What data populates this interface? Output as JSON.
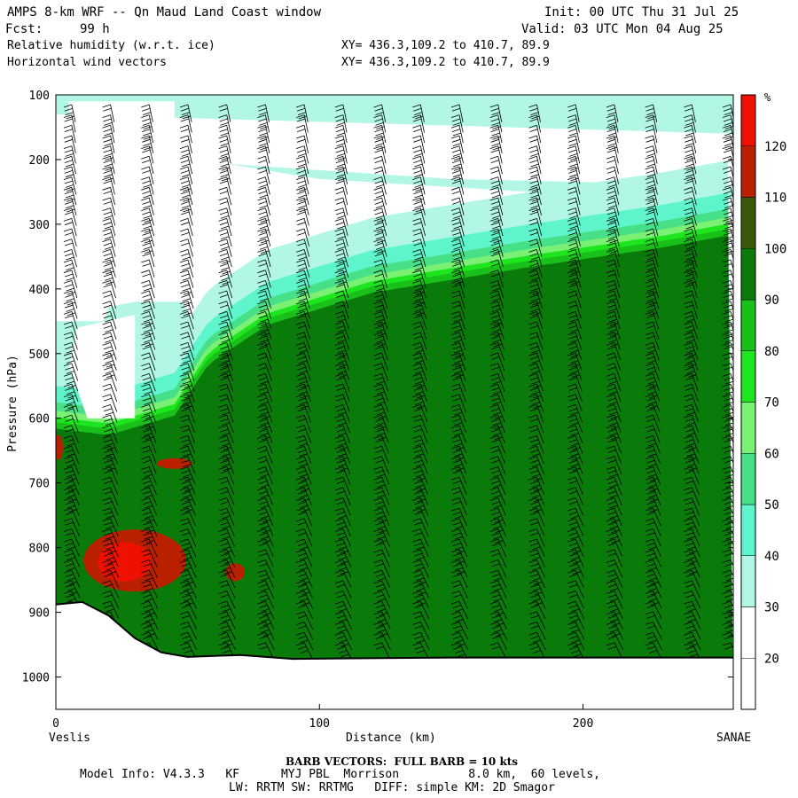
{
  "header": {
    "title": "AMPS 8-km WRF -- Qn Maud Land Coast window",
    "fcst_label": "Fcst:",
    "fcst_value": "99 h",
    "init": "Init: 00 UTC Thu 31 Jul 25",
    "valid": "Valid: 03 UTC Mon 04 Aug 25",
    "field1": "Relative humidity (w.r.t. ice)",
    "field2": "Horizontal wind vectors",
    "xy1": "XY= 436.3,109.2 to 410.7, 89.9",
    "xy2": "XY= 436.3,109.2 to 410.7, 89.9"
  },
  "footer": {
    "left_station": "Veslis",
    "right_station": "SANAE",
    "barb_note": "BARB VECTORS:  FULL BARB = 10 kts",
    "model_info_1": "Model Info: V4.3.3   KF      MYJ PBL  Morrison          8.0 km,  60 levels,",
    "model_info_2": "LW: RRTM SW: RRTMG   DIFF: simple KM: 2D Smagor"
  },
  "chart_data": {
    "type": "heatmap",
    "title": "Relative humidity (w.r.t. ice)",
    "xlabel": "Distance (km)",
    "ylabel": "Pressure (hPa)",
    "x_ticks": [
      0,
      100,
      200
    ],
    "y_ticks": [
      100,
      200,
      300,
      400,
      500,
      600,
      700,
      800,
      900,
      1000
    ],
    "xlim": [
      0,
      257
    ],
    "ylim": [
      1050,
      100
    ],
    "colorbar": {
      "unit": "%",
      "levels": [
        20,
        30,
        40,
        50,
        60,
        70,
        80,
        90,
        100,
        110,
        120
      ],
      "colors": [
        "#ffffff",
        "#ffffff",
        "#b2f7e6",
        "#5ef5cc",
        "#47e088",
        "#7af075",
        "#1ee61e",
        "#19c019",
        "#0a7a0a",
        "#3a5a0a",
        "#b82000",
        "#ee1000"
      ]
    },
    "terrain_pressure": [
      {
        "x": 0,
        "p": 888
      },
      {
        "x": 10,
        "p": 884
      },
      {
        "x": 20,
        "p": 905
      },
      {
        "x": 30,
        "p": 940
      },
      {
        "x": 40,
        "p": 962
      },
      {
        "x": 50,
        "p": 969
      },
      {
        "x": 70,
        "p": 966
      },
      {
        "x": 90,
        "p": 972
      },
      {
        "x": 150,
        "p": 970
      },
      {
        "x": 257,
        "p": 970
      }
    ],
    "moist_layer_top": [
      {
        "x": 0,
        "p": 610
      },
      {
        "x": 20,
        "p": 620
      },
      {
        "x": 45,
        "p": 590
      },
      {
        "x": 58,
        "p": 510
      },
      {
        "x": 80,
        "p": 450
      },
      {
        "x": 120,
        "p": 400
      },
      {
        "x": 180,
        "p": 360
      },
      {
        "x": 230,
        "p": 330
      },
      {
        "x": 257,
        "p": 310
      }
    ],
    "wind_barb_columns": 18,
    "wind_barb_levels": 60
  }
}
